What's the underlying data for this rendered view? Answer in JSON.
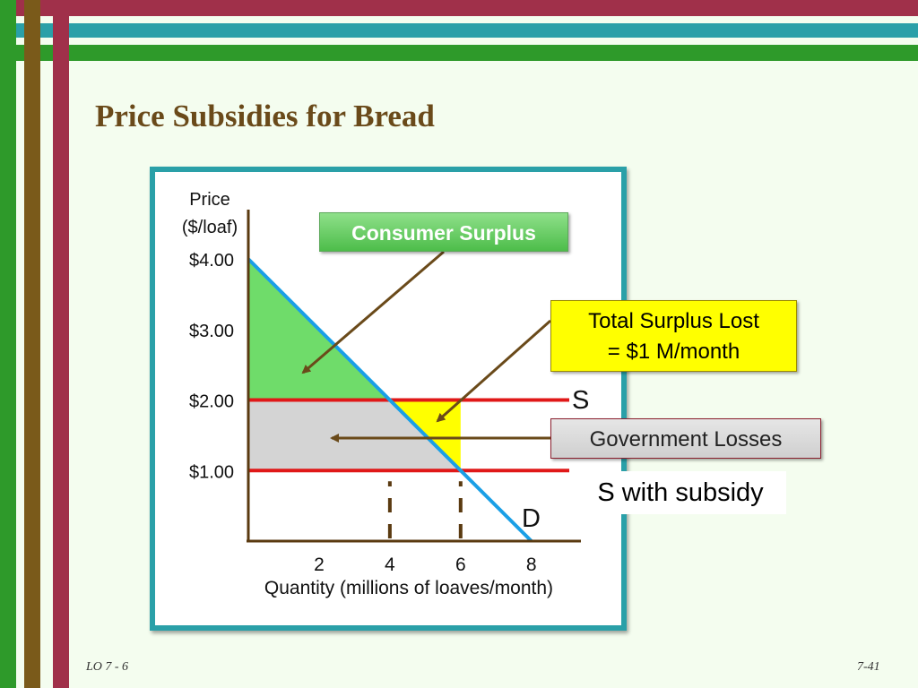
{
  "slide": {
    "title": "Price Subsidies for Bread",
    "footer_left": "LO 7 - 6",
    "footer_right": "7-41"
  },
  "colors": {
    "accent_red": "#a0304a",
    "accent_teal": "#2aa0a8",
    "accent_green": "#2e9a2a",
    "accent_brown": "#7a5a1a",
    "consumer_surplus": "#6fdc6a",
    "deadweight": "#ffff00",
    "government_loss": "#d4d4d4",
    "supply_line": "#e01818",
    "demand_line": "#1a9fe6",
    "arrow": "#6a4a1a"
  },
  "callouts": {
    "consumer_surplus": "Consumer Surplus",
    "surplus_lost_line1": "Total Surplus Lost",
    "surplus_lost_line2": "= $1 M/month",
    "government_losses": "Government Losses",
    "s_with_subsidy": "S with subsidy"
  },
  "chart_data": {
    "type": "line",
    "ylabel_line1": "Price",
    "ylabel_line2": "($/loaf)",
    "xlabel": "Quantity (millions of loaves/month)",
    "x_ticks": [
      2,
      4,
      6,
      8
    ],
    "y_ticks": [
      {
        "value": 1,
        "label": "$1.00"
      },
      {
        "value": 2,
        "label": "$2.00"
      },
      {
        "value": 3,
        "label": "$3.00"
      },
      {
        "value": 4,
        "label": "$4.00"
      }
    ],
    "xlim": [
      0,
      9.4
    ],
    "ylim": [
      0,
      4.7
    ],
    "demand": {
      "name": "D",
      "x": [
        0,
        8
      ],
      "y": [
        4,
        0
      ]
    },
    "supply": {
      "name": "S",
      "y": 2
    },
    "supply_subsidy": {
      "y": 1
    },
    "equilibrium_quantity": 4,
    "subsidized_quantity": 6,
    "regions": {
      "consumer_surplus": [
        [
          0,
          4
        ],
        [
          4,
          2
        ],
        [
          0,
          2
        ]
      ],
      "deadweight_loss": [
        [
          4,
          2
        ],
        [
          6,
          2
        ],
        [
          6,
          1
        ]
      ],
      "government_loss": [
        [
          0,
          2
        ],
        [
          4,
          2
        ],
        [
          6,
          1
        ],
        [
          0,
          1
        ]
      ]
    }
  }
}
